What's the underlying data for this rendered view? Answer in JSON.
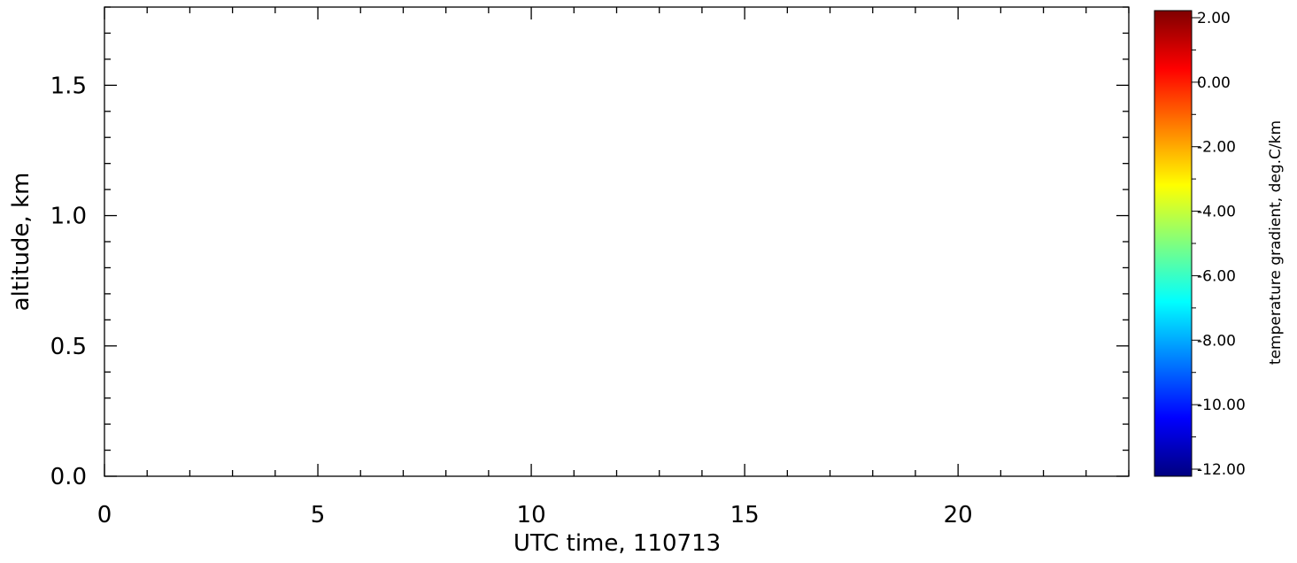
{
  "chart_data": {
    "type": "heatmap",
    "title": "",
    "xlabel": "UTC time, 110713",
    "ylabel": "altitude, km",
    "xlim": [
      0,
      24
    ],
    "ylim": [
      0,
      1.8
    ],
    "x_ticks": [
      0,
      5,
      10,
      15,
      20
    ],
    "x_tick_labels": [
      "0",
      "5",
      "10",
      "15",
      "20"
    ],
    "y_ticks": [
      0,
      0.5,
      1.0,
      1.5
    ],
    "y_tick_labels": [
      "0.0",
      "0.5",
      "1.0",
      "1.5"
    ],
    "grid": false,
    "values": [],
    "colorbar": {
      "label": "temperature gradient, deg.C/km",
      "range": [
        -12,
        2
      ],
      "ticks": [
        2,
        0,
        -2,
        -4,
        -6,
        -8,
        -10,
        -12
      ],
      "tick_labels": [
        "2.00",
        "0.00",
        "-2.00",
        "-4.00",
        "-6.00",
        "-8.00",
        "-10.00",
        "-12.00"
      ],
      "colors": [
        "#00007f",
        "#0000ff",
        "#007fff",
        "#00ffff",
        "#7fff7f",
        "#ffff00",
        "#ff7f00",
        "#ff0000",
        "#7f0000"
      ]
    }
  }
}
